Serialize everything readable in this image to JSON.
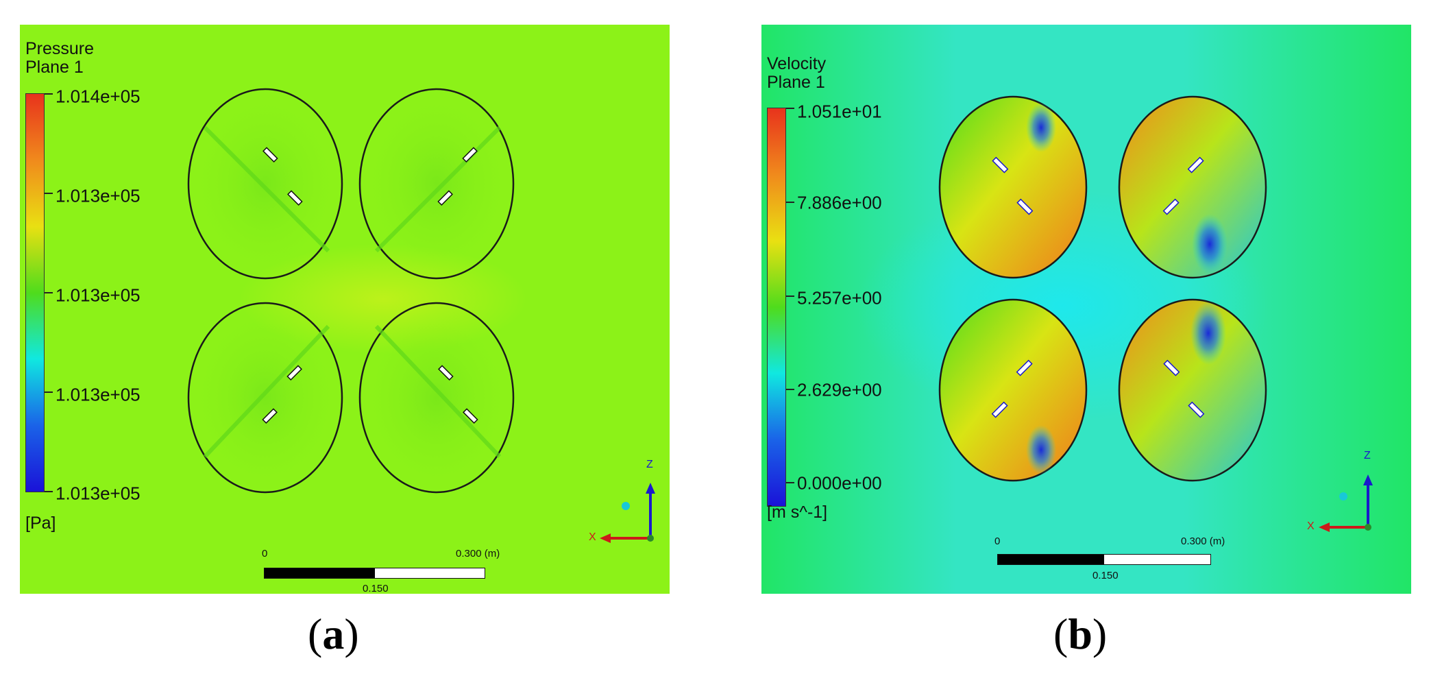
{
  "panels": [
    {
      "caption_letter": "a",
      "legend": {
        "variable": "Pressure",
        "location": "Plane 1",
        "ticks": [
          "1.014e+05",
          "1.013e+05",
          "1.013e+05",
          "1.013e+05",
          "1.013e+05"
        ],
        "unit": "[Pa]"
      },
      "scale": {
        "zero": "0",
        "max": "0.300 (m)",
        "mid": "0.150"
      },
      "axes": {
        "vertical": "Z",
        "horizontal": "X"
      },
      "colors": {
        "background": "#8cf218",
        "colormap": [
          "#e8331c",
          "#f08a1c",
          "#e9e012",
          "#4fdc1c",
          "#10e8e0",
          "#1a63e8",
          "#1a12d8"
        ]
      }
    },
    {
      "caption_letter": "b",
      "legend": {
        "variable": "Velocity",
        "location": "Plane 1",
        "ticks": [
          "1.051e+01",
          "7.886e+00",
          "5.257e+00",
          "2.629e+00",
          "0.000e+00"
        ],
        "unit": "[m s^-1]"
      },
      "scale": {
        "zero": "0",
        "max": "0.300 (m)",
        "mid": "0.150"
      },
      "axes": {
        "vertical": "Z",
        "horizontal": "X"
      },
      "colors": {
        "background": "#25e86a",
        "colormap": [
          "#e8331c",
          "#f08a1c",
          "#e9e012",
          "#4fdc1c",
          "#10e8e0",
          "#1a63e8",
          "#1a12d8"
        ]
      }
    }
  ],
  "caption_parens": [
    "(",
    ")"
  ]
}
